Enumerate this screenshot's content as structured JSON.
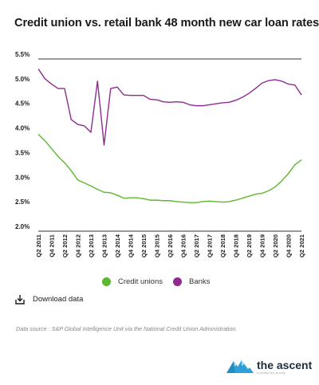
{
  "page": {
    "title": "Credit union vs. retail bank 48 month new car loan rates",
    "download_label": "Download data",
    "source": "Data source : S&P Global Intelligence Unit via the National Credit Union Administration.",
    "logo_text": "the ascent",
    "logo_tagline": "a motley fool service"
  },
  "chart_data": {
    "type": "line",
    "title": "Credit union vs. retail bank 48 month new car loan rates",
    "xlabel": "",
    "ylabel": "",
    "ylim": [
      2.0,
      5.5
    ],
    "yticks": [
      "5.5%",
      "5.0%",
      "4.5%",
      "4.0%",
      "3.5%",
      "3.0%",
      "2.5%",
      "2.0%"
    ],
    "ytick_values": [
      5.5,
      5.0,
      4.5,
      4.0,
      3.5,
      3.0,
      2.5,
      2.0
    ],
    "grid": false,
    "legend": "bottom",
    "x_tick_labels": [
      "Q2 2011",
      "Q4 2011",
      "Q2 2012",
      "Q4 2012",
      "Q2 2013",
      "Q4 2013",
      "Q2 2014",
      "Q4 2014",
      "Q2 2015",
      "Q4 2015",
      "Q2 2016",
      "Q4 2016",
      "Q2 2017",
      "Q4 2017",
      "Q2 2018",
      "Q4 2018",
      "Q2 2019",
      "Q4 2019",
      "Q2 2020",
      "Q4 2020",
      "Q2 2021"
    ],
    "x": [
      "Q2 2011",
      "Q3 2011",
      "Q4 2011",
      "Q1 2012",
      "Q2 2012",
      "Q3 2012",
      "Q4 2012",
      "Q1 2013",
      "Q2 2013",
      "Q3 2013",
      "Q4 2013",
      "Q1 2014",
      "Q2 2014",
      "Q3 2014",
      "Q4 2014",
      "Q1 2015",
      "Q2 2015",
      "Q3 2015",
      "Q4 2015",
      "Q1 2016",
      "Q2 2016",
      "Q3 2016",
      "Q4 2016",
      "Q1 2017",
      "Q2 2017",
      "Q3 2017",
      "Q4 2017",
      "Q1 2018",
      "Q2 2018",
      "Q3 2018",
      "Q4 2018",
      "Q1 2019",
      "Q2 2019",
      "Q3 2019",
      "Q4 2019",
      "Q1 2020",
      "Q2 2020",
      "Q3 2020",
      "Q4 2020",
      "Q1 2021",
      "Q2 2021"
    ],
    "series": [
      {
        "name": "Credit unions",
        "color": "#5cb82e",
        "values": [
          3.97,
          3.84,
          3.68,
          3.52,
          3.39,
          3.23,
          3.04,
          2.98,
          2.92,
          2.85,
          2.79,
          2.78,
          2.73,
          2.67,
          2.68,
          2.68,
          2.66,
          2.63,
          2.63,
          2.62,
          2.62,
          2.6,
          2.59,
          2.58,
          2.58,
          2.6,
          2.61,
          2.6,
          2.59,
          2.6,
          2.63,
          2.67,
          2.71,
          2.75,
          2.77,
          2.82,
          2.9,
          3.02,
          3.17,
          3.35,
          3.45
        ]
      },
      {
        "name": "Banks",
        "color": "#8e2c8e",
        "values": [
          5.3,
          5.1,
          4.99,
          4.9,
          4.9,
          4.27,
          4.17,
          4.14,
          4.01,
          5.05,
          3.75,
          4.9,
          4.93,
          4.77,
          4.76,
          4.76,
          4.76,
          4.68,
          4.67,
          4.63,
          4.62,
          4.63,
          4.62,
          4.57,
          4.55,
          4.55,
          4.57,
          4.59,
          4.61,
          4.62,
          4.66,
          4.72,
          4.8,
          4.9,
          5.01,
          5.06,
          5.08,
          5.05,
          4.99,
          4.97,
          4.77
        ]
      }
    ]
  }
}
